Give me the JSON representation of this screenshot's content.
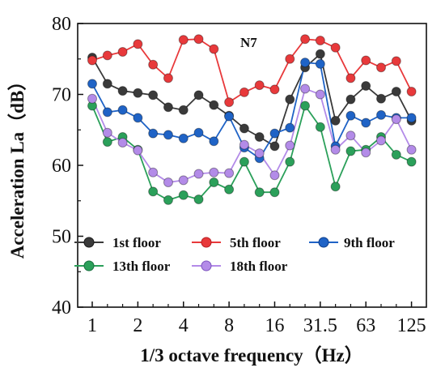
{
  "chart_data": {
    "type": "line",
    "annotation": "N7",
    "xlabel": "1/3 octave frequency（Hz）",
    "ylabel": "Acceleration La（dB）",
    "x_tick_labels": [
      "1",
      "2",
      "4",
      "8",
      "16",
      "31.5",
      "63",
      "125"
    ],
    "x_tick_index": [
      0,
      3,
      6,
      9,
      12,
      15,
      18,
      21
    ],
    "y_ticks": [
      40,
      50,
      60,
      70,
      80
    ],
    "ylim": [
      40,
      80
    ],
    "legend_position": "lower-left",
    "x": [
      1,
      1.25,
      1.6,
      2,
      2.5,
      3.15,
      4,
      5,
      6.3,
      8,
      10,
      12.5,
      16,
      20,
      25,
      31.5,
      40,
      50,
      63,
      80,
      100,
      125
    ],
    "series": [
      {
        "name": "1st floor",
        "color": "#3a3a3a",
        "values": [
          75.2,
          71.5,
          70.5,
          70.2,
          69.9,
          68.2,
          67.8,
          69.9,
          68.5,
          67.0,
          65.2,
          64.0,
          62.7,
          69.3,
          73.8,
          75.7,
          66.3,
          69.3,
          71.2,
          69.4,
          70.4,
          66.3
        ]
      },
      {
        "name": "5th floor",
        "color": "#e8393b",
        "values": [
          74.8,
          75.5,
          76.0,
          77.1,
          74.2,
          72.3,
          77.7,
          77.8,
          76.4,
          68.9,
          70.3,
          71.3,
          70.7,
          75.0,
          77.8,
          77.6,
          76.6,
          72.3,
          74.8,
          73.8,
          74.7,
          70.4
        ]
      },
      {
        "name": "9th floor",
        "color": "#1f63c6",
        "values": [
          71.5,
          67.5,
          67.8,
          66.7,
          64.5,
          64.3,
          63.8,
          64.6,
          63.4,
          66.9,
          62.5,
          61.0,
          64.5,
          65.3,
          74.5,
          74.3,
          62.7,
          67.0,
          66.0,
          67.1,
          66.7,
          66.7
        ]
      },
      {
        "name": "13th floor",
        "color": "#2ba05a",
        "values": [
          68.4,
          63.3,
          64.0,
          62.2,
          56.3,
          55.1,
          55.8,
          55.2,
          57.6,
          56.6,
          60.5,
          56.2,
          56.2,
          60.5,
          68.4,
          65.4,
          57.0,
          62.0,
          62.2,
          64.0,
          61.5,
          60.5
        ]
      },
      {
        "name": "18th floor",
        "color": "#b38be8",
        "values": [
          69.4,
          64.6,
          63.2,
          62.1,
          59.0,
          57.6,
          57.9,
          58.8,
          59.0,
          58.9,
          62.9,
          61.7,
          58.6,
          62.8,
          70.8,
          70.0,
          62.2,
          64.2,
          61.8,
          63.5,
          66.5,
          62.2
        ]
      }
    ]
  }
}
